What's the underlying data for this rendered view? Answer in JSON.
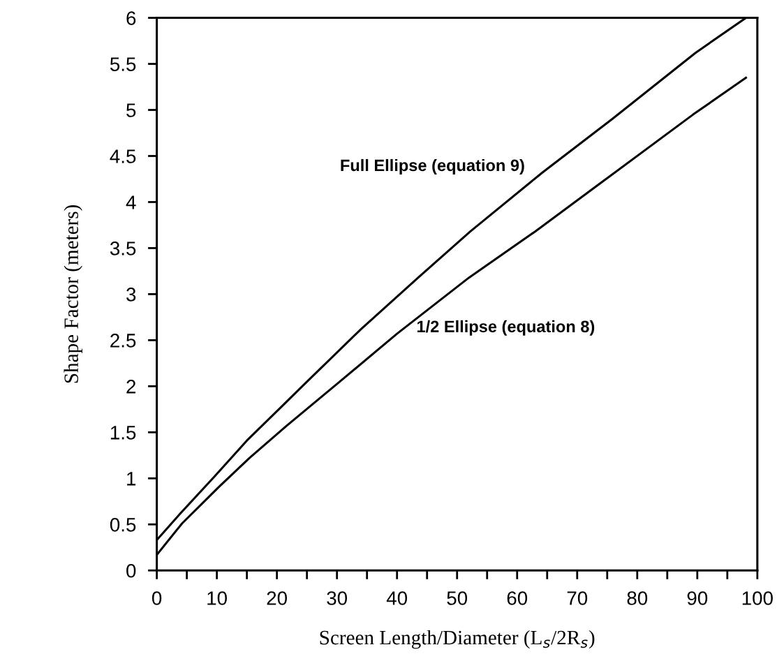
{
  "chart_data": {
    "type": "line",
    "xlabel": "Screen Length/Diameter (L$_{s}$/2R$_{s}$)",
    "ylabel": "Shape Factor (meters)",
    "xlim": [
      0,
      100
    ],
    "ylim": [
      0,
      6
    ],
    "xticks": [
      0,
      {
        "value": 5,
        "label": null
      },
      10,
      {
        "value": 15,
        "label": null
      },
      20,
      {
        "value": 25,
        "label": null
      },
      30,
      {
        "value": 35,
        "label": null
      },
      40,
      {
        "value": 45,
        "label": null
      },
      50,
      {
        "value": 55,
        "label": null
      },
      60,
      {
        "value": 65,
        "label": null
      },
      70,
      {
        "value": 75,
        "label": null
      },
      80,
      {
        "value": 85,
        "label": null
      },
      90,
      {
        "value": 95,
        "label": null
      },
      100
    ],
    "yticks": [
      0,
      0.5,
      1,
      1.5,
      2,
      2.5,
      3,
      3.5,
      4,
      4.5,
      5,
      5.5,
      6
    ],
    "grid": false,
    "marker": "none",
    "line_style": "solid",
    "series": [
      {
        "name": "Full Ellipse (equation 9)",
        "color": "#000000",
        "x": [
          0,
          3.8,
          9.6,
          15.0,
          20.8,
          24.7,
          34,
          43.7,
          52.2,
          64.2,
          75.8,
          89.7,
          98.1
        ],
        "values": [
          0.33,
          0.61,
          1.02,
          1.41,
          1.78,
          2.03,
          2.62,
          3.19,
          3.68,
          4.32,
          4.9,
          5.62,
          6.0
        ]
      },
      {
        "name": "1/2 Ellipse (equation 8)",
        "color": "#000000",
        "x": [
          0,
          4.2,
          10.4,
          15.4,
          21.6,
          30.1,
          40,
          52.0,
          63.0,
          74.6,
          89.3,
          98.1
        ],
        "values": [
          0.17,
          0.51,
          0.91,
          1.22,
          1.57,
          2.03,
          2.57,
          3.18,
          3.68,
          4.24,
          4.95,
          5.35
        ]
      }
    ]
  }
}
